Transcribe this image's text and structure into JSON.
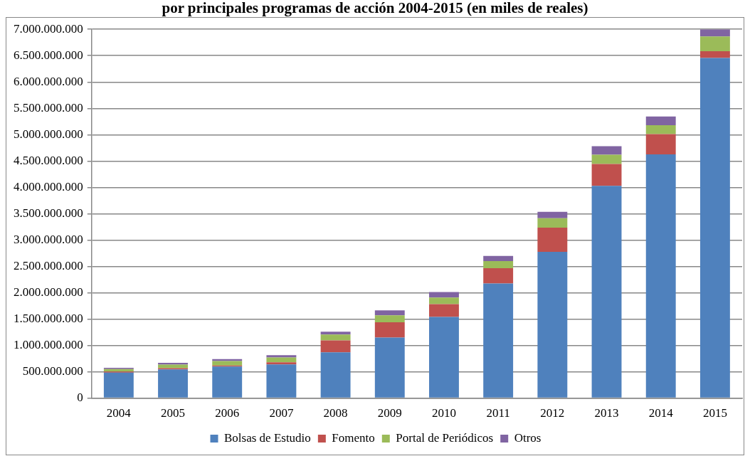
{
  "chart_data": {
    "type": "bar",
    "stacked": true,
    "title": "por principales programas de acción 2004-2015 (en miles de reales)",
    "categories": [
      "2004",
      "2005",
      "2006",
      "2007",
      "2008",
      "2009",
      "2010",
      "2011",
      "2012",
      "2013",
      "2014",
      "2015"
    ],
    "series": [
      {
        "name": "Bolsas de Estudio",
        "color": "#4f81bd",
        "values": [
          485000000,
          545000000,
          600000000,
          640000000,
          870000000,
          1150000000,
          1540000000,
          2175000000,
          2775000000,
          4030000000,
          4625000000,
          6455000000
        ]
      },
      {
        "name": "Fomento",
        "color": "#c0504d",
        "values": [
          20000000,
          25000000,
          20000000,
          40000000,
          225000000,
          290000000,
          245000000,
          290000000,
          460000000,
          415000000,
          385000000,
          130000000
        ]
      },
      {
        "name": "Portal de Periódicos",
        "color": "#9bbb59",
        "values": [
          45000000,
          65000000,
          85000000,
          90000000,
          110000000,
          130000000,
          125000000,
          135000000,
          180000000,
          175000000,
          170000000,
          280000000
        ]
      },
      {
        "name": "Otros",
        "color": "#8064a2",
        "values": [
          25000000,
          35000000,
          35000000,
          45000000,
          55000000,
          95000000,
          105000000,
          100000000,
          120000000,
          160000000,
          165000000,
          135000000
        ]
      }
    ],
    "ylim": [
      0,
      7000000000
    ],
    "yticks": [
      0,
      {
        "value": 500000000,
        "label": "500.000.000"
      },
      {
        "value": 1000000000,
        "label": "1.000.000.000"
      },
      {
        "value": 1500000000,
        "label": "1.500.000.000"
      },
      {
        "value": 2000000000,
        "label": "2.000.000.000"
      },
      {
        "value": 2500000000,
        "label": "2.500.000.000"
      },
      {
        "value": 3000000000,
        "label": "3.000.000.000"
      },
      {
        "value": 3500000000,
        "label": "3.500.000.000"
      },
      {
        "value": 4000000000,
        "label": "4.000.000.000"
      },
      {
        "value": 4500000000,
        "label": "4.500.000.000"
      },
      {
        "value": 5000000000,
        "label": "5.000.000.000"
      },
      {
        "value": 5500000000,
        "label": "5.500.000.000"
      },
      {
        "value": 6000000000,
        "label": "6.000.000.000"
      },
      {
        "value": 6500000000,
        "label": "6.500.000.000"
      },
      {
        "value": 7000000000,
        "label": "7.000.000.000"
      }
    ],
    "grid": "y",
    "legend": "bottom"
  }
}
